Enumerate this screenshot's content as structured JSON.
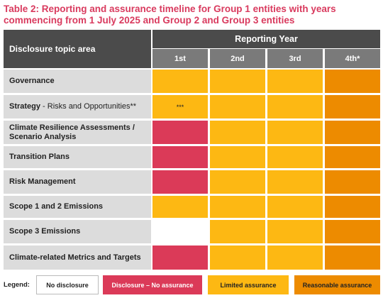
{
  "title": "Table 2: Reporting and assurance timeline for Group 1 entities with years commencing from 1 July 2025 and Group 2 and Group 3 entities",
  "header": {
    "topic": "Disclosure topic area",
    "reporting_year": "Reporting Year",
    "years": [
      "1st",
      "2nd",
      "3rd",
      "4th*"
    ]
  },
  "rows": [
    {
      "label": "Governance",
      "sub": "",
      "cells": [
        "yellow",
        "yellow",
        "yellow",
        "orange"
      ],
      "notes": [
        "",
        "",
        "",
        ""
      ]
    },
    {
      "label": "Strategy",
      "sub": "- Risks and Opportunities**",
      "cells": [
        "yellow",
        "yellow",
        "yellow",
        "orange"
      ],
      "notes": [
        "***",
        "",
        "",
        ""
      ]
    },
    {
      "label": "Climate Resilience Assessments / Scenario Analysis",
      "sub": "",
      "cells": [
        "red",
        "yellow",
        "yellow",
        "orange"
      ],
      "notes": [
        "",
        "",
        "",
        ""
      ]
    },
    {
      "label": "Transition Plans",
      "sub": "",
      "cells": [
        "red",
        "yellow",
        "yellow",
        "orange"
      ],
      "notes": [
        "",
        "",
        "",
        ""
      ]
    },
    {
      "label": "Risk Management",
      "sub": "",
      "cells": [
        "red",
        "yellow",
        "yellow",
        "orange"
      ],
      "notes": [
        "",
        "",
        "",
        ""
      ]
    },
    {
      "label": "Scope 1 and 2 Emissions",
      "sub": "",
      "cells": [
        "yellow",
        "yellow",
        "yellow",
        "orange"
      ],
      "notes": [
        "",
        "",
        "",
        ""
      ]
    },
    {
      "label": "Scope 3 Emissions",
      "sub": "",
      "cells": [
        "none",
        "yellow",
        "yellow",
        "orange"
      ],
      "notes": [
        "",
        "",
        "",
        ""
      ]
    },
    {
      "label": "Climate-related Metrics and Targets",
      "sub": "",
      "cells": [
        "red",
        "yellow",
        "yellow",
        "orange"
      ],
      "notes": [
        "",
        "",
        "",
        ""
      ]
    }
  ],
  "legend": {
    "title": "Legend:",
    "items": [
      {
        "key": "none",
        "label": "No disclosure"
      },
      {
        "key": "red",
        "label": "Disclosure – No assurance"
      },
      {
        "key": "yellow",
        "label": "Limited assurance"
      },
      {
        "key": "orange",
        "label": "Reasonable assurance"
      }
    ]
  },
  "colors": {
    "title": "#d93a5e",
    "header_dark": "#4b4b4b",
    "header_mid": "#7a7a7a",
    "label_bg": "#dcdcdc",
    "none": "#ffffff",
    "red": "#db3a58",
    "yellow": "#fdb813",
    "orange": "#ed8b00"
  }
}
